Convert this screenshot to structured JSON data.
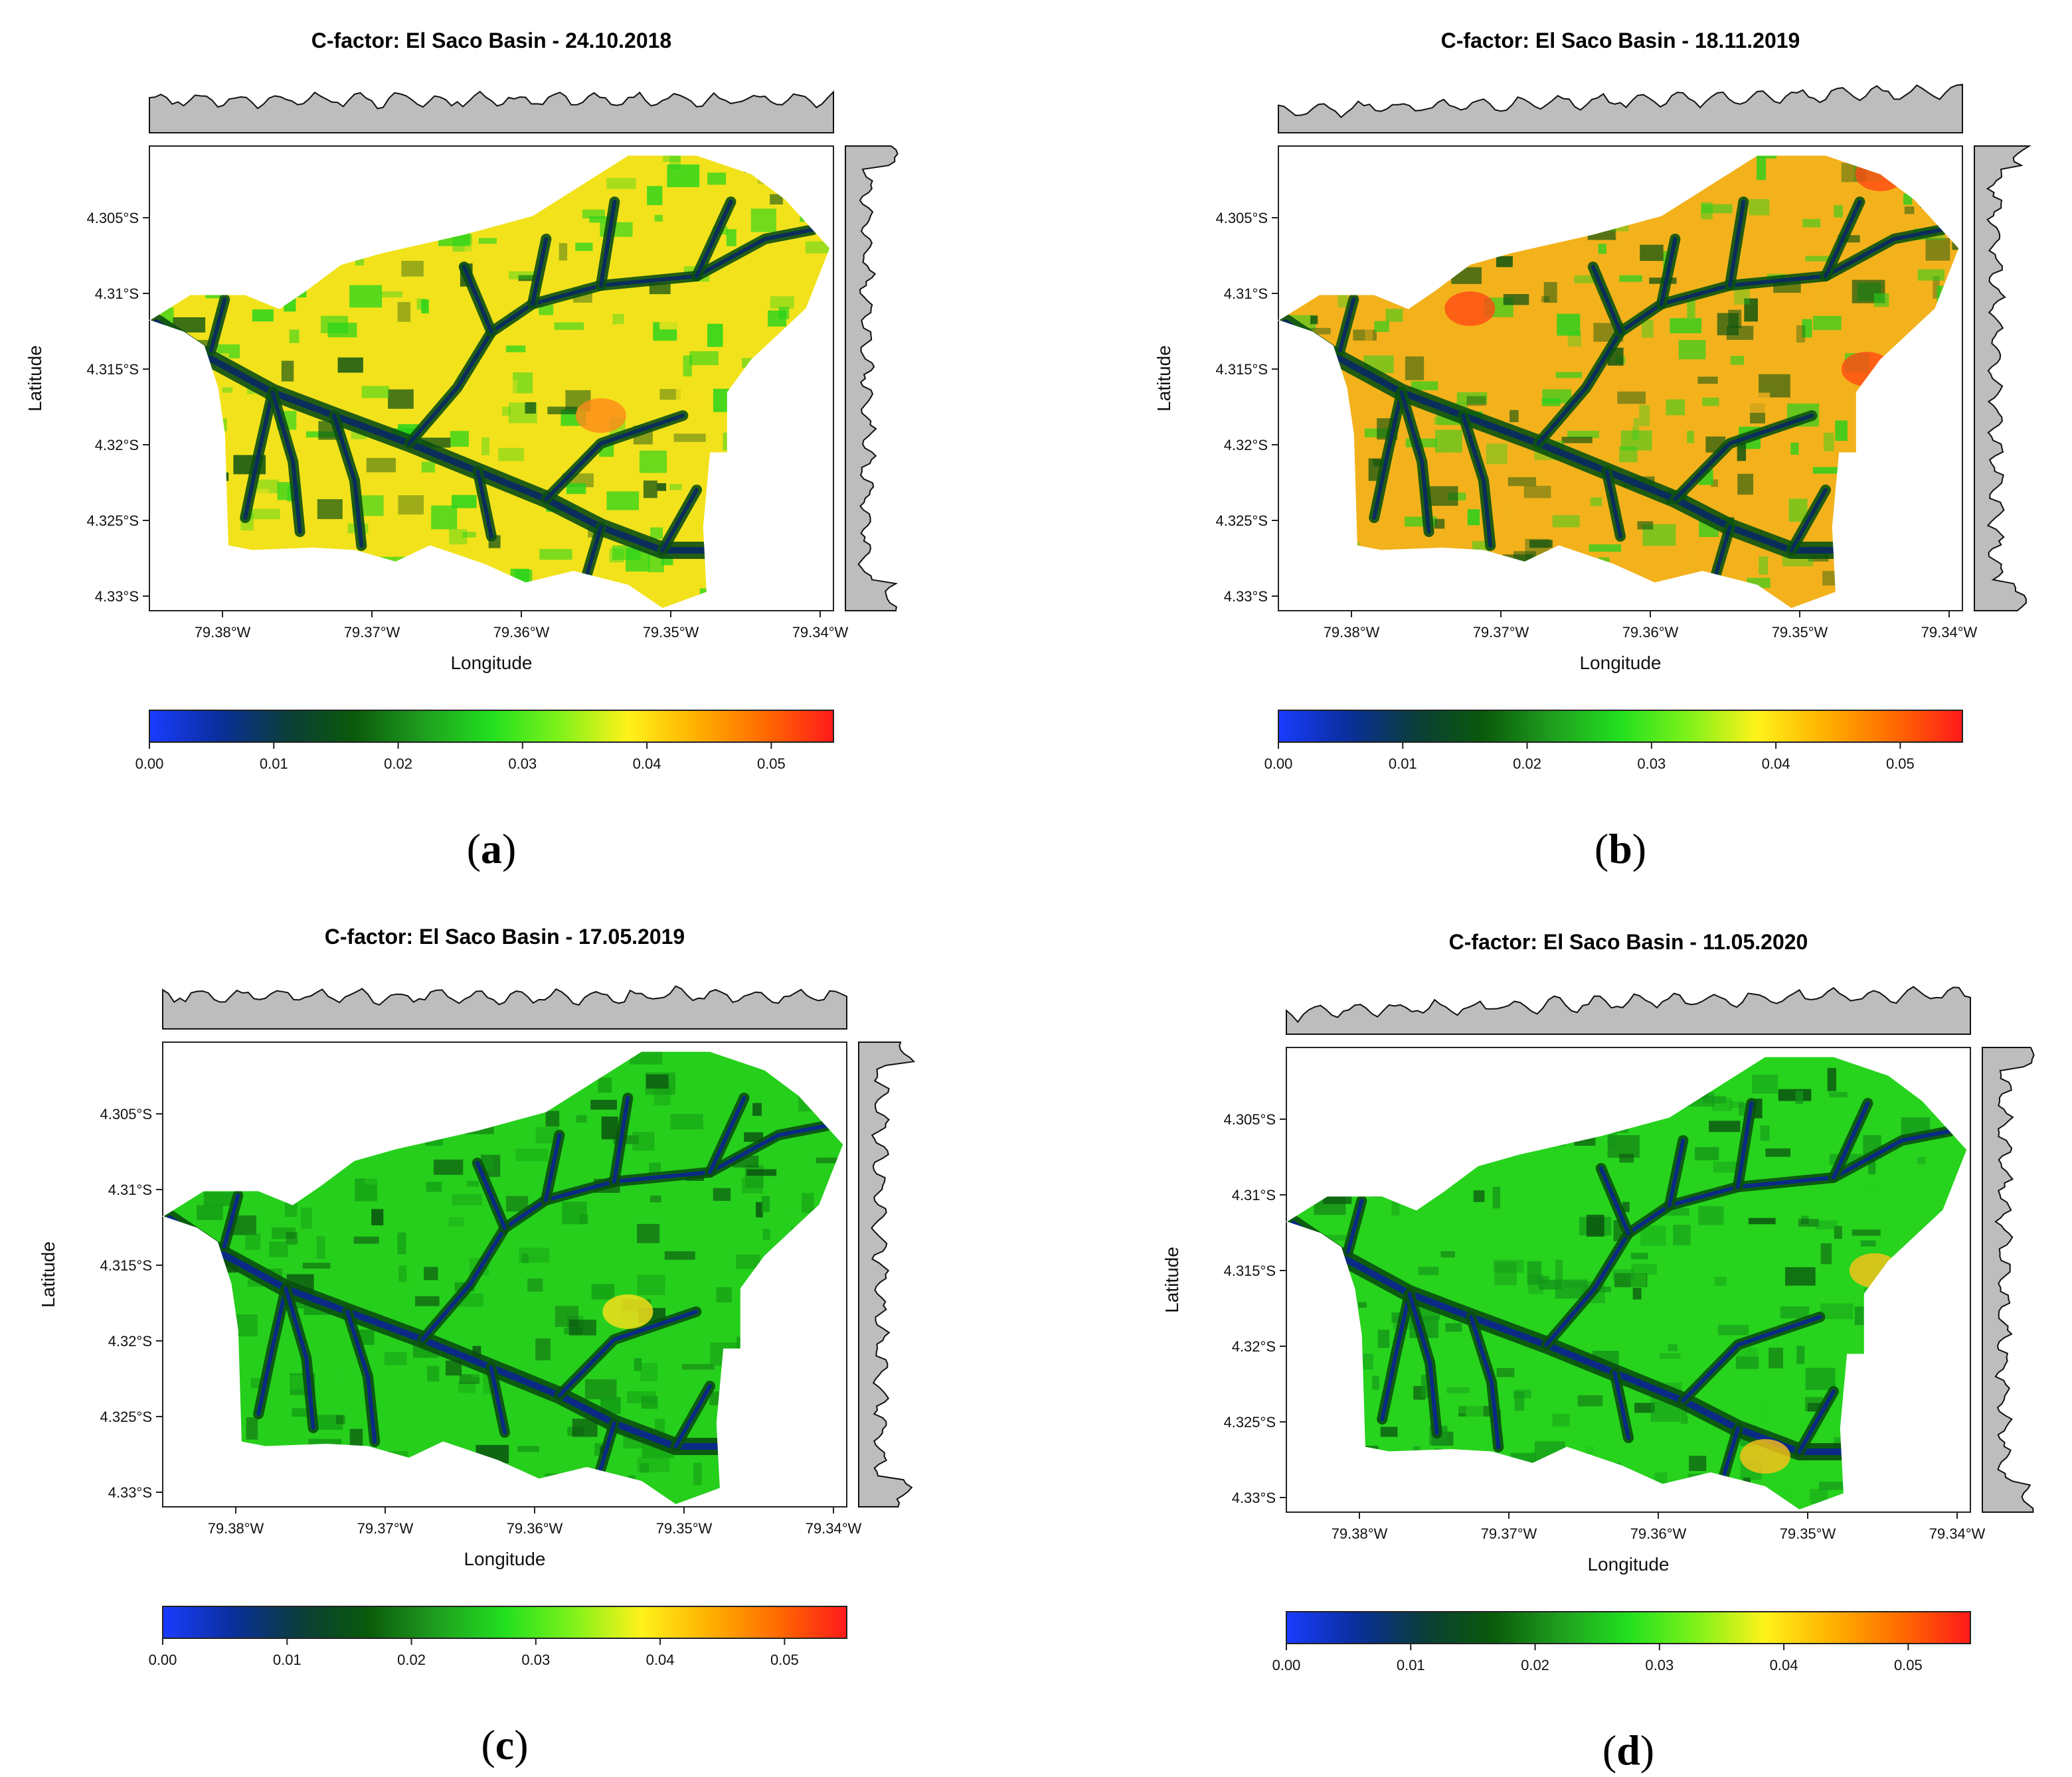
{
  "figure": {
    "panels": [
      {
        "id": "a",
        "title": "C-factor: El Saco Basin - 24.10.2018",
        "letter": "a",
        "dominant": "yellow",
        "highs": [
          [
            0.66,
            0.58
          ]
        ]
      },
      {
        "id": "b",
        "title": "C-factor: El Saco Basin - 18.11.2019",
        "letter": "b",
        "dominant": "orange",
        "highs": [
          [
            0.88,
            0.06
          ],
          [
            0.86,
            0.48
          ],
          [
            0.28,
            0.35
          ]
        ]
      },
      {
        "id": "c",
        "title": "C-factor: El Saco Basin - 17.05.2019",
        "letter": "c",
        "dominant": "green",
        "highs": [
          [
            0.68,
            0.58
          ]
        ]
      },
      {
        "id": "d",
        "title": "C-factor: El Saco Basin - 11.05.2020",
        "letter": "d",
        "dominant": "green2",
        "highs": [
          [
            0.86,
            0.48
          ],
          [
            0.7,
            0.88
          ]
        ]
      }
    ],
    "x_axis": {
      "label": "Longitude",
      "ticks": [
        "79.38°W",
        "79.37°W",
        "79.36°W",
        "79.35°W",
        "79.34°W"
      ]
    },
    "y_axis": {
      "label": "Latitude",
      "ticks": [
        "4.305°S",
        "4.31°S",
        "4.315°S",
        "4.32°S",
        "4.325°S",
        "4.33°S"
      ]
    },
    "colorbar": {
      "ticks": [
        "0.00",
        "0.01",
        "0.02",
        "0.03",
        "0.04",
        "0.05"
      ],
      "range": [
        0,
        0.055
      ],
      "colors": [
        "#1a3cff",
        "#0a2f9e",
        "#0b3d3a",
        "#0a5a0a",
        "#1f9e1f",
        "#22e01f",
        "#7ff21a",
        "#fff21a",
        "#ffb000",
        "#ff6a00",
        "#ff1a1a"
      ]
    }
  }
}
